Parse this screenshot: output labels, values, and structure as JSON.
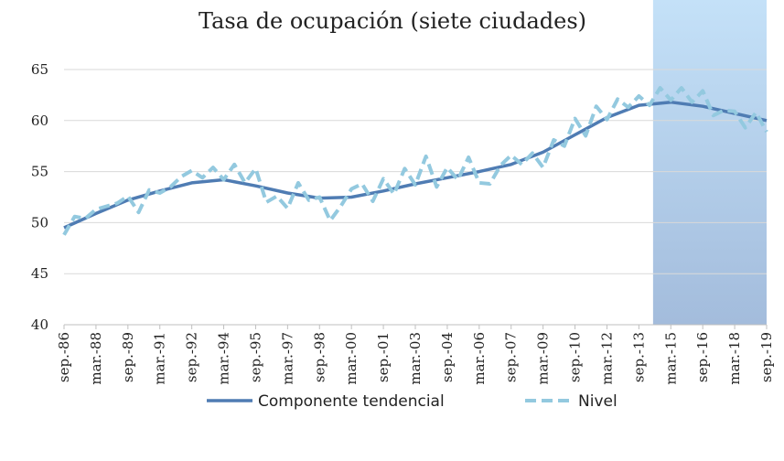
{
  "chart_data": {
    "type": "line",
    "title": "Tasa de ocupación (siete ciudades)",
    "xlabel": "",
    "ylabel": "",
    "ylim": [
      40,
      65
    ],
    "yticks": [
      40,
      45,
      50,
      55,
      60,
      65
    ],
    "x_tick_labels": [
      "sep.-86",
      "mar.-88",
      "sep.-89",
      "mar.-91",
      "sep.-92",
      "mar.-94",
      "sep.-95",
      "mar.-97",
      "sep.-98",
      "mar.-00",
      "sep.-01",
      "mar.-03",
      "sep.-04",
      "mar.-06",
      "sep.-07",
      "mar.-09",
      "sep.-10",
      "mar.-12",
      "sep.-13",
      "mar.-15",
      "sep.-16",
      "mar.-18",
      "sep.-19"
    ],
    "grid": "horizontal",
    "legend_position": "bottom",
    "shaded_region": {
      "from": "may.-14",
      "to": "sep.-19"
    },
    "colors": {
      "trend": "#4f7cb3",
      "level": "#93c9df",
      "shade_top": "#c4e1f8",
      "shade_bottom": "#a3bcdc",
      "grid": "#d9d9d9",
      "axis": "#bfbfbf"
    },
    "series": [
      {
        "name": "Componente tendencial",
        "style": "solid",
        "x": [
          "sep.-86",
          "mar.-88",
          "sep.-89",
          "mar.-91",
          "sep.-92",
          "mar.-94",
          "sep.-95",
          "mar.-97",
          "sep.-98",
          "mar.-00",
          "sep.-01",
          "mar.-03",
          "sep.-04",
          "mar.-06",
          "sep.-07",
          "mar.-09",
          "sep.-10",
          "mar.-12",
          "sep.-13",
          "mar.-15",
          "sep.-16",
          "mar.-18",
          "sep.-19"
        ],
        "values": [
          49.5,
          50.9,
          52.2,
          53.1,
          53.9,
          54.2,
          53.6,
          52.9,
          52.4,
          52.5,
          53.1,
          53.8,
          54.4,
          55.0,
          55.7,
          56.9,
          58.6,
          60.3,
          61.5,
          61.8,
          61.4,
          60.7,
          60.0
        ]
      },
      {
        "name": "Nivel",
        "style": "dashed",
        "x": [
          "sep.-86",
          "mar.-87",
          "sep.-87",
          "mar.-88",
          "sep.-88",
          "mar.-89",
          "sep.-89",
          "mar.-90",
          "sep.-90",
          "mar.-91",
          "sep.-91",
          "mar.-92",
          "sep.-92",
          "mar.-93",
          "sep.-93",
          "mar.-94",
          "sep.-94",
          "mar.-95",
          "sep.-95",
          "mar.-96",
          "sep.-96",
          "mar.-97",
          "sep.-97",
          "mar.-98",
          "sep.-98",
          "mar.-99",
          "sep.-99",
          "mar.-00",
          "sep.-00",
          "mar.-01",
          "sep.-01",
          "mar.-02",
          "sep.-02",
          "mar.-03",
          "sep.-03",
          "mar.-04",
          "sep.-04",
          "mar.-05",
          "sep.-05",
          "mar.-06",
          "sep.-06",
          "mar.-07",
          "sep.-07",
          "mar.-08",
          "sep.-08",
          "mar.-09",
          "sep.-09",
          "mar.-10",
          "sep.-10",
          "mar.-11",
          "sep.-11",
          "mar.-12",
          "sep.-12",
          "mar.-13",
          "sep.-13",
          "mar.-14",
          "sep.-14",
          "mar.-15",
          "sep.-15",
          "mar.-16",
          "sep.-16",
          "mar.-17",
          "sep.-17",
          "mar.-18",
          "sep.-18",
          "mar.-19",
          "sep.-19"
        ],
        "values": [
          48.8,
          50.6,
          50.4,
          51.3,
          51.6,
          51.9,
          52.6,
          51.0,
          53.2,
          52.9,
          53.5,
          54.5,
          55.1,
          54.4,
          55.4,
          54.2,
          55.7,
          53.9,
          55.3,
          52.0,
          52.6,
          51.4,
          53.9,
          52.2,
          52.5,
          50.2,
          51.6,
          53.3,
          53.8,
          52.1,
          54.3,
          52.8,
          55.3,
          53.7,
          56.5,
          53.5,
          55.4,
          54.2,
          56.4,
          53.9,
          53.8,
          55.6,
          56.6,
          55.7,
          56.8,
          55.4,
          58.1,
          57.5,
          60.2,
          58.5,
          61.4,
          60.1,
          62.1,
          61.3,
          62.4,
          61.5,
          63.2,
          62.0,
          63.2,
          61.8,
          62.9,
          60.5,
          61.0,
          60.9,
          59.3,
          60.8,
          58.9
        ]
      }
    ]
  }
}
